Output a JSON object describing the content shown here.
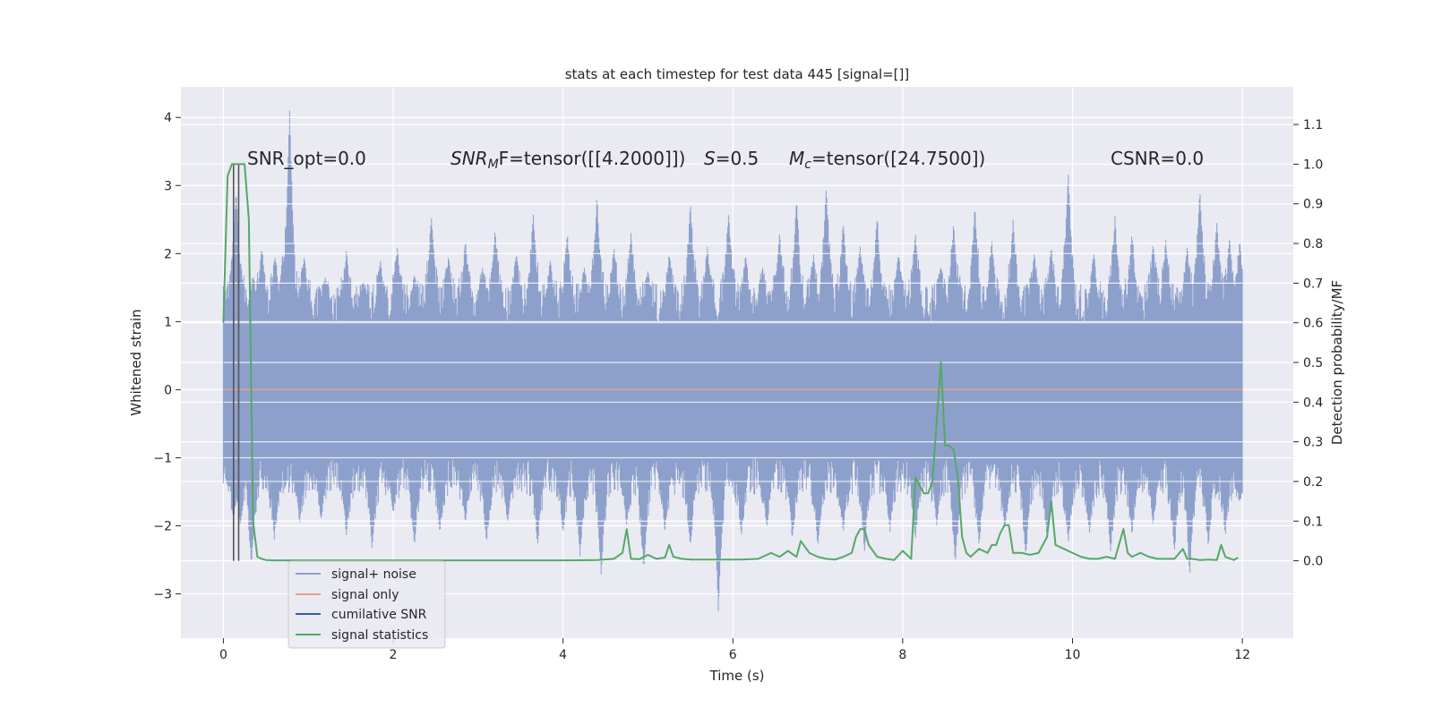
{
  "chart_data": {
    "type": "line",
    "title": "stats at each timestep for test data 445 [signal=[]]",
    "xlabel": "Time (s)",
    "ylabel_left": "Whitened strain",
    "ylabel_right": "Detection probability/MF",
    "xlim": [
      -0.5,
      12.6
    ],
    "ylim_left": [
      -3.65,
      4.45
    ],
    "ylim_right": [
      -0.195,
      1.195
    ],
    "x_ticks": [
      "0",
      "2",
      "4",
      "6",
      "8",
      "10",
      "12"
    ],
    "y_ticks_left": [
      "−3",
      "−2",
      "−1",
      "0",
      "1",
      "2",
      "3",
      "4"
    ],
    "y_ticks_right": [
      "0.0",
      "0.1",
      "0.2",
      "0.3",
      "0.4",
      "0.5",
      "0.6",
      "0.7",
      "0.8",
      "0.9",
      "1.0",
      "1.1"
    ],
    "grid": true,
    "legend_placement": "lower-left",
    "colors": {
      "noise": "#8da0cb",
      "signal": "#e5a08a",
      "snr": "#3a5ba0",
      "stats": "#55a868",
      "plot_bg": "#eaeaf2",
      "grid": "#ffffff"
    },
    "annotations": {
      "snr_opt": "SNR_opt=0.0",
      "snr_mf_prefix": "SNR",
      "snr_mf_sub": "M",
      "snr_mf_suffix": "F=tensor([[4.2000]])",
      "s_var": "S",
      "s_val": "=0.5",
      "mc_var": "M",
      "mc_sub": "c",
      "mc_val": "=tensor([24.7500])",
      "csnr": "CSNR=0.0"
    },
    "series": [
      {
        "name": "signal+ noise",
        "axis": "left",
        "x_range": [
          0,
          12
        ],
        "envelope_upper": 1.0,
        "envelope_lower": -1.0,
        "peaks": [
          [
            0.08,
            1.5
          ],
          [
            0.15,
            2.95
          ],
          [
            0.2,
            1.9
          ],
          [
            0.35,
            1.65
          ],
          [
            0.45,
            2.1
          ],
          [
            0.61,
            1.95
          ],
          [
            0.7,
            2.0
          ],
          [
            0.78,
            4.1
          ],
          [
            0.95,
            1.95
          ],
          [
            1.2,
            1.65
          ],
          [
            1.45,
            2.05
          ],
          [
            1.65,
            1.6
          ],
          [
            1.85,
            1.9
          ],
          [
            2.05,
            2.1
          ],
          [
            2.25,
            1.7
          ],
          [
            2.45,
            2.55
          ],
          [
            2.65,
            1.95
          ],
          [
            2.85,
            2.2
          ],
          [
            3.05,
            1.8
          ],
          [
            3.2,
            2.35
          ],
          [
            3.45,
            2.0
          ],
          [
            3.65,
            2.6
          ],
          [
            3.85,
            1.9
          ],
          [
            4.05,
            2.3
          ],
          [
            4.25,
            1.8
          ],
          [
            4.4,
            2.85
          ],
          [
            4.6,
            2.1
          ],
          [
            4.8,
            2.3
          ],
          [
            5.0,
            1.75
          ],
          [
            5.25,
            2.0
          ],
          [
            5.5,
            2.75
          ],
          [
            5.7,
            2.1
          ],
          [
            5.95,
            2.6
          ],
          [
            6.15,
            2.0
          ],
          [
            6.35,
            1.8
          ],
          [
            6.55,
            2.3
          ],
          [
            6.75,
            2.8
          ],
          [
            6.95,
            2.0
          ],
          [
            7.1,
            3.0
          ],
          [
            7.3,
            2.45
          ],
          [
            7.5,
            2.1
          ],
          [
            7.7,
            2.55
          ],
          [
            7.95,
            2.0
          ],
          [
            8.15,
            2.3
          ],
          [
            8.45,
            1.8
          ],
          [
            8.6,
            2.45
          ],
          [
            8.85,
            2.7
          ],
          [
            9.05,
            2.2
          ],
          [
            9.3,
            2.5
          ],
          [
            9.55,
            2.0
          ],
          [
            9.75,
            2.1
          ],
          [
            9.95,
            3.2
          ],
          [
            10.25,
            2.0
          ],
          [
            10.5,
            2.55
          ],
          [
            10.7,
            2.3
          ],
          [
            10.95,
            2.15
          ],
          [
            11.1,
            2.2
          ],
          [
            11.35,
            2.1
          ],
          [
            11.5,
            2.95
          ],
          [
            11.7,
            2.45
          ],
          [
            11.85,
            2.25
          ],
          [
            11.97,
            2.2
          ]
        ],
        "troughs": [
          [
            0.12,
            -1.95
          ],
          [
            0.2,
            -2.0
          ],
          [
            0.33,
            -2.6
          ],
          [
            0.6,
            -2.2
          ],
          [
            0.9,
            -1.95
          ],
          [
            1.15,
            -1.9
          ],
          [
            1.45,
            -2.15
          ],
          [
            1.75,
            -2.35
          ],
          [
            2.0,
            -1.8
          ],
          [
            2.25,
            -2.3
          ],
          [
            2.55,
            -2.1
          ],
          [
            2.85,
            -1.95
          ],
          [
            3.1,
            -2.25
          ],
          [
            3.35,
            -1.95
          ],
          [
            3.7,
            -2.3
          ],
          [
            4.0,
            -2.1
          ],
          [
            4.2,
            -2.45
          ],
          [
            4.45,
            -2.75
          ],
          [
            4.75,
            -2.0
          ],
          [
            4.95,
            -2.65
          ],
          [
            5.2,
            -2.1
          ],
          [
            5.5,
            -2.3
          ],
          [
            5.83,
            -3.3
          ],
          [
            6.1,
            -2.15
          ],
          [
            6.4,
            -2.05
          ],
          [
            6.7,
            -2.2
          ],
          [
            7.0,
            -2.3
          ],
          [
            7.3,
            -2.1
          ],
          [
            7.55,
            -2.4
          ],
          [
            7.85,
            -2.1
          ],
          [
            8.15,
            -2.2
          ],
          [
            8.4,
            -2.0
          ],
          [
            8.62,
            -2.55
          ],
          [
            8.9,
            -2.3
          ],
          [
            9.2,
            -2.05
          ],
          [
            9.45,
            -2.45
          ],
          [
            9.7,
            -2.2
          ],
          [
            9.95,
            -2.25
          ],
          [
            10.2,
            -2.1
          ],
          [
            10.45,
            -2.4
          ],
          [
            10.7,
            -2.15
          ],
          [
            10.95,
            -2.0
          ],
          [
            11.2,
            -2.4
          ],
          [
            11.38,
            -2.75
          ],
          [
            11.6,
            -2.3
          ],
          [
            11.8,
            -2.15
          ],
          [
            11.97,
            -1.65
          ]
        ]
      },
      {
        "name": "signal only",
        "axis": "left",
        "x": [
          0,
          12
        ],
        "y": [
          0,
          0
        ]
      },
      {
        "name": "cumilative SNR",
        "axis": "right",
        "x": [],
        "y": []
      },
      {
        "name": "signal statistics",
        "axis": "right",
        "x": [
          0.0,
          0.05,
          0.1,
          0.15,
          0.2,
          0.25,
          0.3,
          0.35,
          0.4,
          0.45,
          0.5,
          0.6,
          1.0,
          1.5,
          2.0,
          2.5,
          3.0,
          3.5,
          4.0,
          4.4,
          4.6,
          4.7,
          4.75,
          4.8,
          4.9,
          5.0,
          5.1,
          5.2,
          5.25,
          5.3,
          5.4,
          5.5,
          5.8,
          6.1,
          6.3,
          6.45,
          6.55,
          6.65,
          6.75,
          6.8,
          6.9,
          7.0,
          7.1,
          7.2,
          7.3,
          7.4,
          7.45,
          7.5,
          7.55,
          7.6,
          7.7,
          7.8,
          7.9,
          8.0,
          8.1,
          8.15,
          8.25,
          8.3,
          8.35,
          8.4,
          8.45,
          8.5,
          8.55,
          8.6,
          8.65,
          8.7,
          8.75,
          8.8,
          8.9,
          9.0,
          9.05,
          9.1,
          9.15,
          9.2,
          9.25,
          9.3,
          9.35,
          9.4,
          9.5,
          9.6,
          9.7,
          9.75,
          9.8,
          9.9,
          10.0,
          10.1,
          10.2,
          10.3,
          10.4,
          10.5,
          10.6,
          10.65,
          10.7,
          10.8,
          10.9,
          11.0,
          11.1,
          11.2,
          11.3,
          11.35,
          11.4,
          11.5,
          11.6,
          11.7,
          11.75,
          11.8,
          11.9,
          11.95
        ],
        "y": [
          0.6,
          0.97,
          1.0,
          1.0,
          1.0,
          1.0,
          0.86,
          0.1,
          0.01,
          0.005,
          0.002,
          0.001,
          0.001,
          0.001,
          0.001,
          0.001,
          0.001,
          0.001,
          0.001,
          0.002,
          0.005,
          0.02,
          0.08,
          0.005,
          0.004,
          0.015,
          0.005,
          0.008,
          0.04,
          0.01,
          0.005,
          0.003,
          0.003,
          0.003,
          0.005,
          0.02,
          0.01,
          0.025,
          0.01,
          0.05,
          0.02,
          0.01,
          0.005,
          0.003,
          0.01,
          0.02,
          0.06,
          0.08,
          0.08,
          0.04,
          0.01,
          0.005,
          0.002,
          0.025,
          0.005,
          0.21,
          0.17,
          0.17,
          0.2,
          0.35,
          0.5,
          0.29,
          0.29,
          0.28,
          0.21,
          0.06,
          0.02,
          0.01,
          0.03,
          0.02,
          0.04,
          0.04,
          0.07,
          0.09,
          0.09,
          0.02,
          0.02,
          0.02,
          0.015,
          0.02,
          0.06,
          0.15,
          0.04,
          0.03,
          0.02,
          0.01,
          0.005,
          0.005,
          0.01,
          0.005,
          0.08,
          0.02,
          0.01,
          0.02,
          0.01,
          0.005,
          0.005,
          0.005,
          0.03,
          0.005,
          0.005,
          0.002,
          0.003,
          0.002,
          0.04,
          0.01,
          0.002,
          0.008
        ]
      }
    ],
    "vertical_markers": [
      0.12,
      0.18
    ]
  }
}
